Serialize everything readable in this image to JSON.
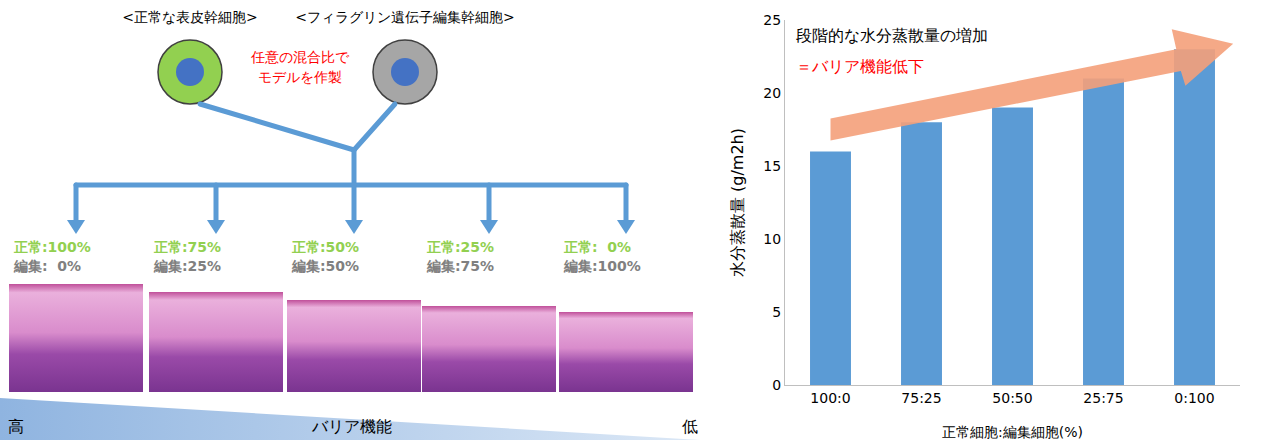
{
  "diagram": {
    "cells": [
      {
        "label": "<正常な表皮幹細胞>",
        "color": "#92d050"
      },
      {
        "label": "<フィラグリン遺伝子編集幹細胞>",
        "color": "#a6a6a6"
      }
    ],
    "mix_note": [
      "任意の混合比で",
      "モデルを作製"
    ],
    "models": [
      {
        "normal": "正常:100%",
        "edited": "編集:  0%"
      },
      {
        "normal": "正常:75%",
        "edited": "編集:25%"
      },
      {
        "normal": "正常:50%",
        "edited": "編集:50%"
      },
      {
        "normal": "正常:25%",
        "edited": "編集:75%"
      },
      {
        "normal": "正常:  0%",
        "edited": "編集:100%"
      }
    ],
    "scale": {
      "high": "高",
      "label": "バリア機能",
      "low": "低"
    }
  },
  "chart_data": {
    "type": "bar",
    "categories": [
      "100:0",
      "75:25",
      "50:50",
      "25:75",
      "0:100"
    ],
    "values": [
      16,
      18,
      19,
      21,
      23
    ],
    "color": "#5b9bd5",
    "x_label": "正常細胞:編集細胞(%)",
    "y_label": "水分蒸散量 (g/m2h)",
    "ylim": [
      0,
      25
    ],
    "yticks": [
      0,
      5,
      10,
      15,
      20,
      25
    ],
    "grid": false,
    "annotations": [
      "段階的な水分蒸散量の増加",
      "＝バリア機能低下"
    ]
  }
}
